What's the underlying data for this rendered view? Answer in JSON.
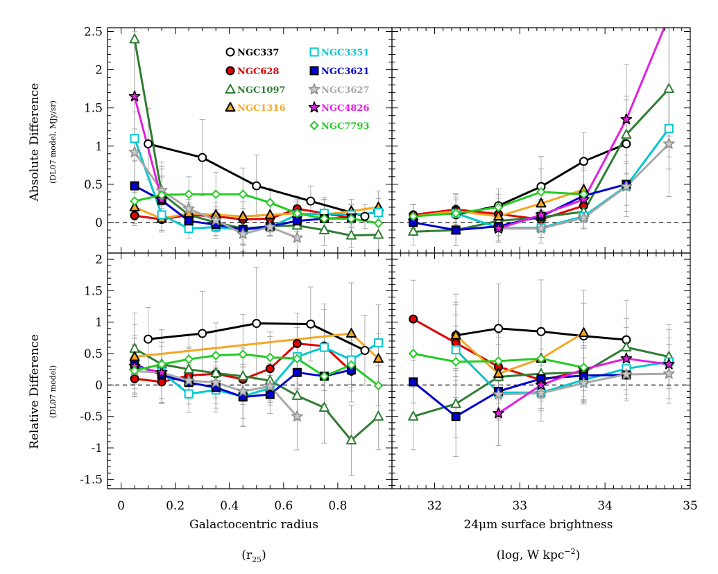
{
  "chart_data": {
    "type": "line",
    "layout": "2x2 panels",
    "legend": [
      {
        "label": "NGC337",
        "color": "#000000",
        "marker": "circle-open"
      },
      {
        "label": "NGC628",
        "color": "#e00000",
        "marker": "circle-filled"
      },
      {
        "label": "NGC1097",
        "color": "#2e7d32",
        "marker": "triangle-open"
      },
      {
        "label": "NGC1316",
        "color": "#f5a623",
        "marker": "triangle-filled"
      },
      {
        "label": "NGC3351",
        "color": "#00c8d0",
        "marker": "square-open"
      },
      {
        "label": "NGC3621",
        "color": "#0000d0",
        "marker": "square-filled"
      },
      {
        "label": "NGC3627",
        "color": "#a8a8a8",
        "marker": "star-open"
      },
      {
        "label": "NGC4826",
        "color": "#e020e0",
        "marker": "star-filled"
      },
      {
        "label": "NGC7793",
        "color": "#22cc22",
        "marker": "diamond-open"
      }
    ],
    "legend_placement": "top of upper-left panel",
    "rows": [
      {
        "ylabel": "Absolute Difference",
        "ysublabel": "(DL07 model, MJy/sr)",
        "ylim": [
          -0.4,
          2.55
        ],
        "yticks": [
          "2.5",
          "2",
          "1.5",
          "1",
          "0.5",
          "0"
        ],
        "ytick_values": [
          2.5,
          2,
          1.5,
          1,
          0.5,
          0
        ]
      },
      {
        "ylabel": "Relative Difference",
        "ysublabel": "(DL07 model)",
        "ylim": [
          -1.65,
          2.1
        ],
        "yticks": [
          "2",
          "1.5",
          "1",
          "0.5",
          "0",
          "-0.5",
          "-1",
          "-1.5"
        ],
        "ytick_values": [
          2,
          1.5,
          1,
          0.5,
          0,
          -0.5,
          -1,
          -1.5
        ]
      }
    ],
    "columns": [
      {
        "xlabel": "Galactocentric radius",
        "xunit": "(r",
        "xunit_sub": "25",
        "xunit_tail": ")",
        "xlim": [
          -0.05,
          1.0
        ],
        "xticks": [
          "0",
          "0.2",
          "0.4",
          "0.6",
          "0.8"
        ],
        "xtick_values": [
          0,
          0.2,
          0.4,
          0.6,
          0.8
        ]
      },
      {
        "xlabel": "24μm surface brightness",
        "xunit": "(log, W kpc",
        "xunit_sup": "−2",
        "xunit_tail": ")",
        "xlim": [
          31.5,
          35.0
        ],
        "xticks": [
          "32",
          "33",
          "34",
          "35"
        ],
        "xtick_values": [
          32,
          33,
          34,
          35
        ]
      }
    ],
    "grid": false,
    "zero_line": "dashed",
    "panels": [
      {
        "row": 0,
        "col": 0,
        "series": [
          {
            "name": "NGC337",
            "x": [
              0.1,
              0.3,
              0.5,
              0.7,
              0.9
            ],
            "y": [
              1.03,
              0.85,
              0.48,
              0.28,
              0.08
            ]
          },
          {
            "name": "NGC628",
            "x": [
              0.05,
              0.15,
              0.25,
              0.35,
              0.45,
              0.55,
              0.65,
              0.75,
              0.85
            ],
            "y": [
              0.09,
              0.04,
              0.1,
              0.08,
              0.04,
              0.05,
              0.18,
              0.12,
              0.06
            ]
          },
          {
            "name": "NGC1097",
            "x": [
              0.05,
              0.15,
              0.25,
              0.35,
              0.45,
              0.55,
              0.65,
              0.75,
              0.85,
              0.95
            ],
            "y": [
              2.4,
              0.38,
              0.1,
              0.0,
              -0.08,
              -0.05,
              -0.04,
              -0.1,
              -0.17,
              -0.16
            ]
          },
          {
            "name": "NGC1316",
            "x": [
              0.05,
              0.15,
              0.25,
              0.35,
              0.45,
              0.55,
              0.65,
              0.75,
              0.85,
              0.95
            ],
            "y": [
              0.2,
              0.05,
              0.12,
              0.1,
              0.08,
              0.1,
              0.12,
              0.1,
              0.15,
              0.2
            ]
          },
          {
            "name": "NGC3351",
            "x": [
              0.05,
              0.15,
              0.25,
              0.35,
              0.45,
              0.55,
              0.65,
              0.75,
              0.85,
              0.95
            ],
            "y": [
              1.1,
              0.1,
              -0.08,
              -0.06,
              -0.1,
              -0.06,
              0.1,
              0.12,
              0.1,
              0.13
            ]
          },
          {
            "name": "NGC3621",
            "x": [
              0.05,
              0.15,
              0.25,
              0.35,
              0.45,
              0.55,
              0.65,
              0.75,
              0.85
            ],
            "y": [
              0.48,
              0.29,
              0.02,
              -0.03,
              -0.09,
              -0.05,
              0.02,
              0.05,
              0.06
            ]
          },
          {
            "name": "NGC3627",
            "x": [
              0.05,
              0.15,
              0.25,
              0.35,
              0.45,
              0.55,
              0.65
            ],
            "y": [
              0.92,
              0.42,
              0.18,
              0.03,
              -0.15,
              -0.06,
              -0.2
            ]
          },
          {
            "name": "NGC4826",
            "x": [
              0.05,
              0.15
            ],
            "y": [
              1.65,
              0.3
            ]
          },
          {
            "name": "NGC7793",
            "x": [
              0.05,
              0.15,
              0.25,
              0.35,
              0.45,
              0.55,
              0.65,
              0.75,
              0.85,
              0.95
            ],
            "y": [
              0.28,
              0.36,
              0.37,
              0.37,
              0.37,
              0.26,
              0.12,
              0.05,
              0.05,
              -0.01
            ]
          }
        ]
      },
      {
        "row": 0,
        "col": 1,
        "series": [
          {
            "name": "NGC337",
            "x": [
              32.25,
              32.75,
              33.25,
              33.75,
              34.25
            ],
            "y": [
              0.1,
              0.22,
              0.47,
              0.8,
              1.03
            ]
          },
          {
            "name": "NGC628",
            "x": [
              31.75,
              32.25,
              32.75,
              33.25,
              33.75
            ],
            "y": [
              0.1,
              0.17,
              0.11,
              0.04,
              0.22
            ]
          },
          {
            "name": "NGC1097",
            "x": [
              31.75,
              32.25,
              32.75,
              33.25,
              33.75,
              34.25,
              34.75
            ],
            "y": [
              -0.12,
              -0.1,
              0.02,
              0.07,
              0.14,
              1.15,
              1.75
            ]
          },
          {
            "name": "NGC1316",
            "x": [
              31.75,
              32.25,
              32.75,
              33.25,
              33.75
            ],
            "y": [
              0.08,
              0.15,
              0.08,
              0.25,
              0.43
            ]
          },
          {
            "name": "NGC3351",
            "x": [
              32.25,
              32.75,
              33.25,
              33.75,
              34.25,
              34.75
            ],
            "y": [
              0.12,
              -0.07,
              -0.07,
              0.08,
              0.48,
              1.23
            ]
          },
          {
            "name": "NGC3621",
            "x": [
              31.75,
              32.25,
              32.75,
              33.25,
              33.75,
              34.25
            ],
            "y": [
              0.0,
              -0.1,
              -0.05,
              0.08,
              0.35,
              0.5
            ]
          },
          {
            "name": "NGC3627",
            "x": [
              32.75,
              33.25,
              33.75,
              34.25,
              34.75
            ],
            "y": [
              -0.08,
              -0.08,
              0.06,
              0.47,
              1.03
            ]
          },
          {
            "name": "NGC4826",
            "x": [
              32.75,
              33.25,
              33.75,
              34.25,
              34.75
            ],
            "y": [
              -0.08,
              0.1,
              0.3,
              1.35,
              2.7
            ]
          },
          {
            "name": "NGC7793",
            "x": [
              31.75,
              32.25,
              32.75,
              33.25,
              33.75
            ],
            "y": [
              0.08,
              0.12,
              0.2,
              0.4,
              0.37
            ]
          }
        ]
      },
      {
        "row": 1,
        "col": 0,
        "series": [
          {
            "name": "NGC337",
            "x": [
              0.1,
              0.3,
              0.5,
              0.7,
              0.9
            ],
            "y": [
              0.73,
              0.82,
              0.98,
              0.97,
              0.55
            ]
          },
          {
            "name": "NGC628",
            "x": [
              0.05,
              0.15,
              0.25,
              0.35,
              0.45,
              0.55,
              0.65,
              0.75,
              0.85
            ],
            "y": [
              0.1,
              0.05,
              0.15,
              0.18,
              0.09,
              0.26,
              0.66,
              0.62,
              0.22
            ]
          },
          {
            "name": "NGC1097",
            "x": [
              0.05,
              0.15,
              0.25,
              0.35,
              0.45,
              0.55,
              0.65,
              0.75,
              0.85,
              0.95
            ],
            "y": [
              0.58,
              0.33,
              0.25,
              0.19,
              0.14,
              0.07,
              -0.17,
              -0.36,
              -0.88,
              -0.5
            ]
          },
          {
            "name": "NGC1316",
            "x": [
              0.05,
              0.85,
              0.95
            ],
            "y": [
              0.45,
              0.82,
              0.42
            ]
          },
          {
            "name": "NGC3351",
            "x": [
              0.05,
              0.15,
              0.25,
              0.35,
              0.45,
              0.55,
              0.65,
              0.75,
              0.85,
              0.95
            ],
            "y": [
              0.3,
              0.2,
              -0.14,
              -0.08,
              -0.18,
              -0.05,
              0.45,
              0.6,
              0.4,
              0.67
            ]
          },
          {
            "name": "NGC3621",
            "x": [
              0.05,
              0.15,
              0.25,
              0.35,
              0.45,
              0.55,
              0.65,
              0.75,
              0.85
            ],
            "y": [
              0.33,
              0.16,
              0.04,
              -0.04,
              -0.19,
              -0.15,
              0.2,
              0.14,
              0.24
            ]
          },
          {
            "name": "NGC3627",
            "x": [
              0.05,
              0.15,
              0.25,
              0.35,
              0.45,
              0.55,
              0.65
            ],
            "y": [
              0.22,
              0.2,
              0.07,
              0.04,
              -0.1,
              -0.02,
              -0.5
            ]
          },
          {
            "name": "NGC4826",
            "x": [
              0.05,
              0.15
            ],
            "y": [
              0.3,
              0.2
            ]
          },
          {
            "name": "NGC7793",
            "x": [
              0.05,
              0.15,
              0.25,
              0.35,
              0.45,
              0.55,
              0.65,
              0.75,
              0.85,
              0.95
            ],
            "y": [
              0.23,
              0.33,
              0.41,
              0.47,
              0.49,
              0.44,
              0.42,
              0.14,
              0.32,
              -0.01
            ]
          }
        ]
      },
      {
        "row": 1,
        "col": 1,
        "series": [
          {
            "name": "NGC337",
            "x": [
              32.25,
              32.75,
              33.25,
              33.75,
              34.25
            ],
            "y": [
              0.79,
              0.9,
              0.85,
              0.78,
              0.72
            ]
          },
          {
            "name": "NGC628",
            "x": [
              31.75,
              32.25,
              32.75,
              33.25,
              33.75
            ],
            "y": [
              1.05,
              0.67,
              0.29,
              0.08,
              0.22
            ]
          },
          {
            "name": "NGC1097",
            "x": [
              31.75,
              32.25,
              32.75,
              33.25,
              33.75,
              34.25,
              34.75
            ],
            "y": [
              -0.5,
              -0.3,
              0.13,
              0.18,
              0.2,
              0.6,
              0.45
            ]
          },
          {
            "name": "NGC1316",
            "x": [
              32.25,
              32.75,
              33.25,
              33.75
            ],
            "y": [
              0.79,
              0.18,
              0.42,
              0.83
            ]
          },
          {
            "name": "NGC3351",
            "x": [
              32.25,
              32.75,
              33.25,
              33.75,
              34.25,
              34.75
            ],
            "y": [
              0.56,
              -0.12,
              -0.12,
              0.08,
              0.26,
              0.37
            ]
          },
          {
            "name": "NGC3621",
            "x": [
              31.75,
              32.25,
              32.75,
              33.25,
              33.75,
              34.25
            ],
            "y": [
              0.05,
              -0.5,
              -0.1,
              0.1,
              0.15,
              0.16
            ]
          },
          {
            "name": "NGC3627",
            "x": [
              32.75,
              33.25,
              33.75,
              34.25,
              34.75
            ],
            "y": [
              -0.15,
              -0.13,
              0.03,
              0.17,
              0.18
            ]
          },
          {
            "name": "NGC4826",
            "x": [
              32.75,
              33.25,
              33.75,
              34.25,
              34.75
            ],
            "y": [
              -0.45,
              0.0,
              0.25,
              0.42,
              0.33
            ]
          },
          {
            "name": "NGC7793",
            "x": [
              31.75,
              32.25,
              32.75,
              33.25,
              33.75
            ],
            "y": [
              0.5,
              0.37,
              0.38,
              0.42,
              0.28
            ]
          }
        ]
      }
    ]
  }
}
